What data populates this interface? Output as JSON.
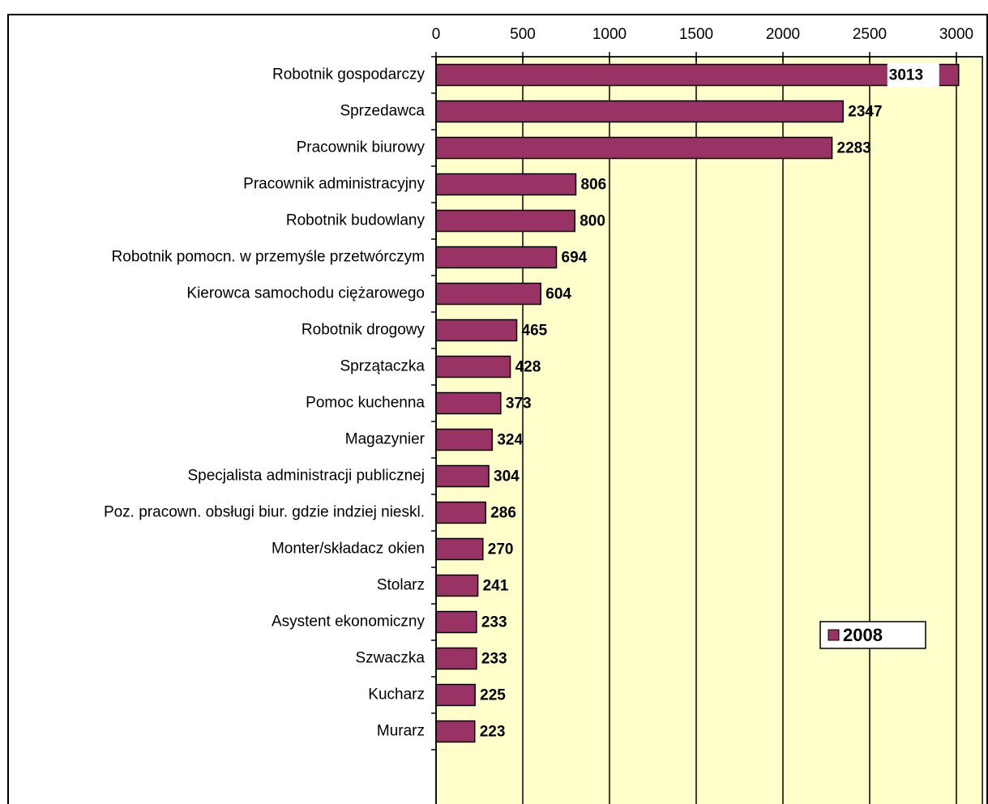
{
  "chart_data": {
    "type": "bar",
    "orientation": "horizontal",
    "categories": [
      "Robotnik gospodarczy",
      "Sprzedawca",
      "Pracownik biurowy",
      "Pracownik administracyjny",
      "Robotnik budowlany",
      "Robotnik pomocn. w przemyśle przetwórczym",
      "Kierowca samochodu ciężarowego",
      "Robotnik drogowy",
      "Sprzątaczka",
      "Pomoc kuchenna",
      "Magazynier",
      "Specjalista administracji publicznej",
      "Poz. pracown. obsługi biur. gdzie indziej nieskl.",
      "Monter/składacz okien",
      "Stolarz",
      "Asystent ekonomiczny ",
      "Szwaczka",
      "Kucharz",
      "Murarz"
    ],
    "series": [
      {
        "name": "2008",
        "color": "#993366",
        "values": [
          3013,
          2347,
          2283,
          806,
          800,
          694,
          604,
          465,
          428,
          373,
          324,
          304,
          286,
          270,
          241,
          233,
          233,
          225,
          223
        ]
      }
    ],
    "xlim": [
      0,
      3150
    ],
    "xticks": [
      0,
      500,
      1000,
      1500,
      2000,
      2500,
      3000
    ],
    "grid": true,
    "legend": "right",
    "plot_background": "#ffffcc"
  }
}
